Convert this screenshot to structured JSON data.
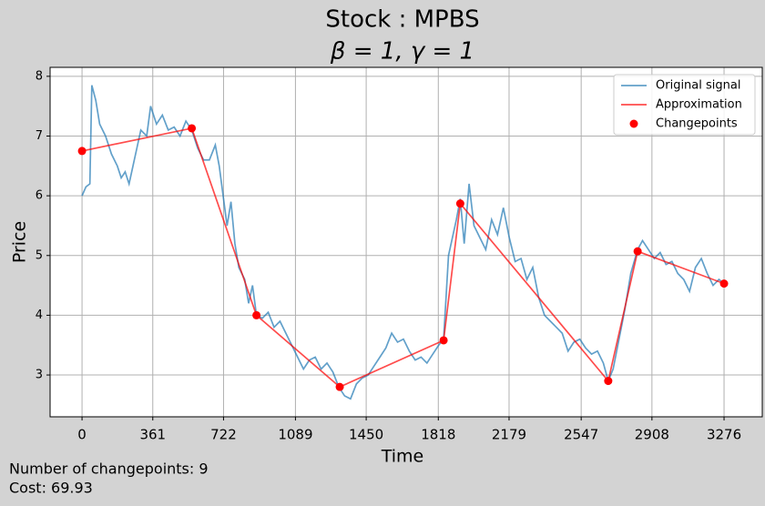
{
  "chart_data": {
    "type": "line",
    "title": "Stock : MPBS",
    "subtitle": "β = 1, γ = 1",
    "xlabel": "Time",
    "ylabel": "Price",
    "annotations": [
      "Number of changepoints: 9",
      "Cost: 69.93"
    ],
    "xlim": [
      -163,
      3471
    ],
    "ylim": [
      2.3,
      8.15
    ],
    "xticks": [
      0,
      361,
      722,
      1089,
      1450,
      1818,
      2179,
      2547,
      2908,
      3276
    ],
    "yticks": [
      3,
      4,
      5,
      6,
      7,
      8
    ],
    "grid": true,
    "legend": "upper right",
    "series": [
      {
        "name": "Original signal",
        "kind": "line",
        "color": "#1f77b4",
        "x": [
          0,
          20,
          40,
          50,
          70,
          90,
          120,
          150,
          180,
          200,
          220,
          240,
          260,
          280,
          300,
          330,
          350,
          380,
          410,
          440,
          470,
          500,
          530,
          560,
          590,
          620,
          650,
          680,
          700,
          720,
          740,
          760,
          780,
          800,
          830,
          850,
          870,
          890,
          920,
          950,
          980,
          1010,
          1040,
          1070,
          1100,
          1130,
          1160,
          1190,
          1220,
          1250,
          1280,
          1310,
          1340,
          1370,
          1400,
          1430,
          1460,
          1490,
          1520,
          1550,
          1580,
          1610,
          1640,
          1670,
          1700,
          1730,
          1760,
          1790,
          1820,
          1845,
          1870,
          1890,
          1910,
          1930,
          1950,
          1975,
          2000,
          2030,
          2060,
          2090,
          2120,
          2150,
          2180,
          2210,
          2240,
          2270,
          2300,
          2330,
          2360,
          2390,
          2420,
          2450,
          2480,
          2510,
          2540,
          2570,
          2600,
          2630,
          2660,
          2685,
          2710,
          2740,
          2770,
          2800,
          2835,
          2860,
          2890,
          2920,
          2950,
          2980,
          3010,
          3040,
          3070,
          3100,
          3130,
          3160,
          3190,
          3220,
          3250,
          3276
        ],
        "values": [
          6.0,
          6.15,
          6.2,
          7.85,
          7.6,
          7.2,
          7.0,
          6.7,
          6.5,
          6.3,
          6.4,
          6.2,
          6.5,
          6.8,
          7.1,
          7.0,
          7.5,
          7.2,
          7.35,
          7.1,
          7.15,
          7.0,
          7.25,
          7.1,
          6.8,
          6.6,
          6.6,
          6.85,
          6.5,
          6.0,
          5.5,
          5.9,
          5.2,
          4.8,
          4.6,
          4.2,
          4.5,
          4.0,
          3.95,
          4.05,
          3.8,
          3.9,
          3.7,
          3.5,
          3.3,
          3.1,
          3.25,
          3.3,
          3.1,
          3.2,
          3.05,
          2.8,
          2.65,
          2.6,
          2.85,
          2.95,
          3.0,
          3.15,
          3.3,
          3.45,
          3.7,
          3.55,
          3.6,
          3.4,
          3.25,
          3.3,
          3.2,
          3.35,
          3.5,
          3.6,
          5.0,
          5.3,
          5.6,
          5.95,
          5.2,
          6.2,
          5.5,
          5.3,
          5.1,
          5.6,
          5.35,
          5.8,
          5.3,
          4.9,
          4.95,
          4.6,
          4.8,
          4.3,
          4.0,
          3.9,
          3.8,
          3.7,
          3.4,
          3.55,
          3.6,
          3.45,
          3.35,
          3.4,
          3.2,
          2.9,
          3.1,
          3.6,
          4.1,
          4.7,
          5.1,
          5.25,
          5.1,
          4.95,
          5.05,
          4.85,
          4.9,
          4.7,
          4.6,
          4.4,
          4.8,
          4.95,
          4.7,
          4.5,
          4.6,
          4.53
        ]
      },
      {
        "name": "Approximation",
        "kind": "line",
        "color": "#ff0000",
        "x": [
          0,
          560,
          890,
          1315,
          1845,
          1930,
          2685,
          2835,
          3276
        ],
        "values": [
          6.75,
          7.13,
          4.0,
          2.8,
          3.58,
          5.87,
          2.9,
          5.07,
          4.53
        ]
      },
      {
        "name": "Changepoints",
        "kind": "scatter",
        "color": "#ff0000",
        "x": [
          0,
          560,
          890,
          1315,
          1845,
          1930,
          2685,
          2835,
          3276
        ],
        "values": [
          6.75,
          7.13,
          4.0,
          2.8,
          3.58,
          5.87,
          2.9,
          5.07,
          4.53
        ]
      }
    ]
  }
}
